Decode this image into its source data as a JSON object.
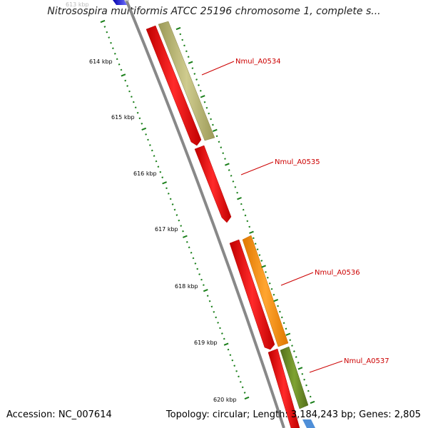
{
  "title": "Nitrosospira multiformis ATCC 25196 chromosome 1, complete s...",
  "footer": {
    "accession": "Accession: NC_007614",
    "topology": "Topology: circular; Length: 3,184,243 bp; Genes: 2,805"
  },
  "ticks": [
    "613 kbp",
    "614 kbp",
    "615 kbp",
    "616 kbp",
    "617 kbp",
    "618 kbp",
    "619 kbp",
    "620 kbp"
  ],
  "genes": [
    {
      "name": "Nmul_A0534",
      "strand": "forward",
      "color": "#bdb76b"
    },
    {
      "name": "Nmul_A0535",
      "strand": "reverse",
      "color": "#ff0000"
    },
    {
      "name": "Nmul_A0536",
      "strand": "forward",
      "color": "#ff8c00"
    },
    {
      "name": "Nmul_A0537",
      "strand": "forward",
      "color": "#6b8e23"
    }
  ],
  "colors": {
    "backbone": "#888888",
    "cds": "#ff0000",
    "tick": "#1a7f1a",
    "label": "#cc0000",
    "neighbor_left": "#0000cc",
    "neighbor_right": "#4f8fd8"
  }
}
